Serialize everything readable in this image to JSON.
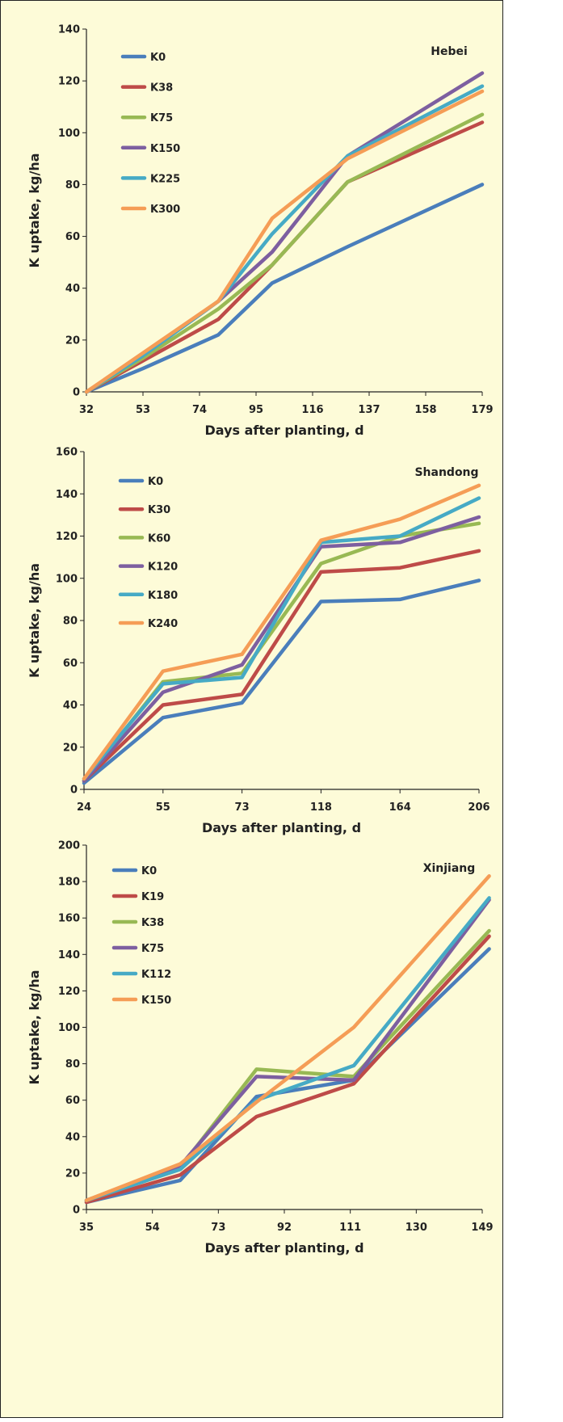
{
  "chart_data": [
    {
      "type": "line",
      "region": "Hebei",
      "x": [
        32,
        53,
        74,
        95,
        116,
        137,
        158,
        179
      ],
      "xticks": [
        "32",
        "53",
        "74",
        "95",
        "116",
        "137",
        "158",
        "179"
      ],
      "xlabel": "Days after planting, d",
      "ylabel": "K uptake, kg/ha",
      "ylim": [
        0,
        140
      ],
      "yticks": [
        0,
        20,
        40,
        60,
        80,
        100,
        120,
        140
      ],
      "legend_position": "top-left",
      "series": [
        {
          "name": "K0",
          "color": "#4a7ebb",
          "points": [
            [
              32,
              0
            ],
            [
              53,
              9
            ],
            [
              81,
              22
            ],
            [
              101,
              42
            ],
            [
              129,
              56
            ],
            [
              179,
              80
            ]
          ]
        },
        {
          "name": "K38",
          "color": "#be4b48",
          "points": [
            [
              32,
              0
            ],
            [
              53,
              12
            ],
            [
              81,
              28
            ],
            [
              101,
              49
            ],
            [
              129,
              81
            ],
            [
              179,
              104
            ]
          ]
        },
        {
          "name": "K75",
          "color": "#98b954",
          "points": [
            [
              32,
              0
            ],
            [
              53,
              13
            ],
            [
              81,
              32
            ],
            [
              101,
              49
            ],
            [
              129,
              81
            ],
            [
              179,
              107
            ]
          ]
        },
        {
          "name": "K150",
          "color": "#7d5fa0",
          "points": [
            [
              32,
              0
            ],
            [
              53,
              14
            ],
            [
              81,
              35
            ],
            [
              101,
              54
            ],
            [
              129,
              91
            ],
            [
              179,
              123
            ]
          ]
        },
        {
          "name": "K225",
          "color": "#46aac5",
          "points": [
            [
              32,
              0
            ],
            [
              53,
              14
            ],
            [
              81,
              35
            ],
            [
              101,
              61
            ],
            [
              129,
              91
            ],
            [
              179,
              118
            ]
          ]
        },
        {
          "name": "K300",
          "color": "#f59d56",
          "points": [
            [
              32,
              0
            ],
            [
              53,
              15
            ],
            [
              81,
              35
            ],
            [
              101,
              67
            ],
            [
              129,
              90
            ],
            [
              179,
              116
            ]
          ]
        }
      ]
    },
    {
      "type": "line",
      "region": "Shandong",
      "x": [
        24,
        55,
        73,
        118,
        164,
        206
      ],
      "xticks": [
        "24",
        "55",
        "73",
        "118",
        "164",
        "206"
      ],
      "xlabel": "Days after planting, d",
      "ylabel": "K uptake, kg/ha",
      "ylim": [
        0,
        160
      ],
      "yticks": [
        0,
        20,
        40,
        60,
        80,
        100,
        120,
        140,
        160
      ],
      "legend_position": "top-left",
      "series": [
        {
          "name": "K0",
          "color": "#4a7ebb",
          "values": [
            3,
            34,
            41,
            89,
            90,
            99
          ]
        },
        {
          "name": "K30",
          "color": "#be4b48",
          "values": [
            4,
            40,
            45,
            103,
            105,
            113
          ]
        },
        {
          "name": "K60",
          "color": "#98b954",
          "values": [
            4,
            51,
            55,
            107,
            120,
            126
          ]
        },
        {
          "name": "K120",
          "color": "#7d5fa0",
          "values": [
            4,
            46,
            59,
            115,
            117,
            129
          ]
        },
        {
          "name": "K180",
          "color": "#46aac5",
          "values": [
            5,
            50,
            53,
            117,
            120,
            138
          ]
        },
        {
          "name": "K240",
          "color": "#f59d56",
          "values": [
            5,
            56,
            64,
            118,
            128,
            144
          ]
        }
      ]
    },
    {
      "type": "line",
      "region": "Xinjiang",
      "x": [
        35,
        54,
        73,
        92,
        111,
        130,
        149
      ],
      "xticks": [
        "35",
        "54",
        "73",
        "92",
        "111",
        "130",
        "149"
      ],
      "xlabel": "Days after planting, d",
      "ylabel": "K uptake, kg/ha",
      "ylim": [
        0,
        200
      ],
      "yticks": [
        0,
        20,
        40,
        60,
        80,
        100,
        120,
        140,
        160,
        180,
        200
      ],
      "legend_position": "top-left",
      "series": [
        {
          "name": "K0",
          "color": "#4a7ebb",
          "points": [
            [
              35,
              4
            ],
            [
              62,
              16
            ],
            [
              84,
              62
            ],
            [
              112,
              71
            ],
            [
              151,
              143
            ]
          ]
        },
        {
          "name": "K19",
          "color": "#be4b48",
          "points": [
            [
              35,
              4
            ],
            [
              62,
              19
            ],
            [
              84,
              51
            ],
            [
              112,
              69
            ],
            [
              151,
              150
            ]
          ]
        },
        {
          "name": "K38",
          "color": "#98b954",
          "points": [
            [
              35,
              5
            ],
            [
              62,
              23
            ],
            [
              84,
              77
            ],
            [
              112,
              73
            ],
            [
              151,
              153
            ]
          ]
        },
        {
          "name": "K75",
          "color": "#7d5fa0",
          "points": [
            [
              35,
              5
            ],
            [
              62,
              24
            ],
            [
              84,
              73
            ],
            [
              112,
              71
            ],
            [
              151,
              170
            ]
          ]
        },
        {
          "name": "K112",
          "color": "#46aac5",
          "points": [
            [
              35,
              5
            ],
            [
              62,
              22
            ],
            [
              84,
              60
            ],
            [
              112,
              79
            ],
            [
              151,
              171
            ]
          ]
        },
        {
          "name": "K150",
          "color": "#f59d56",
          "points": [
            [
              35,
              5
            ],
            [
              62,
              25
            ],
            [
              84,
              59
            ],
            [
              112,
              100
            ],
            [
              151,
              183
            ]
          ]
        }
      ]
    }
  ]
}
